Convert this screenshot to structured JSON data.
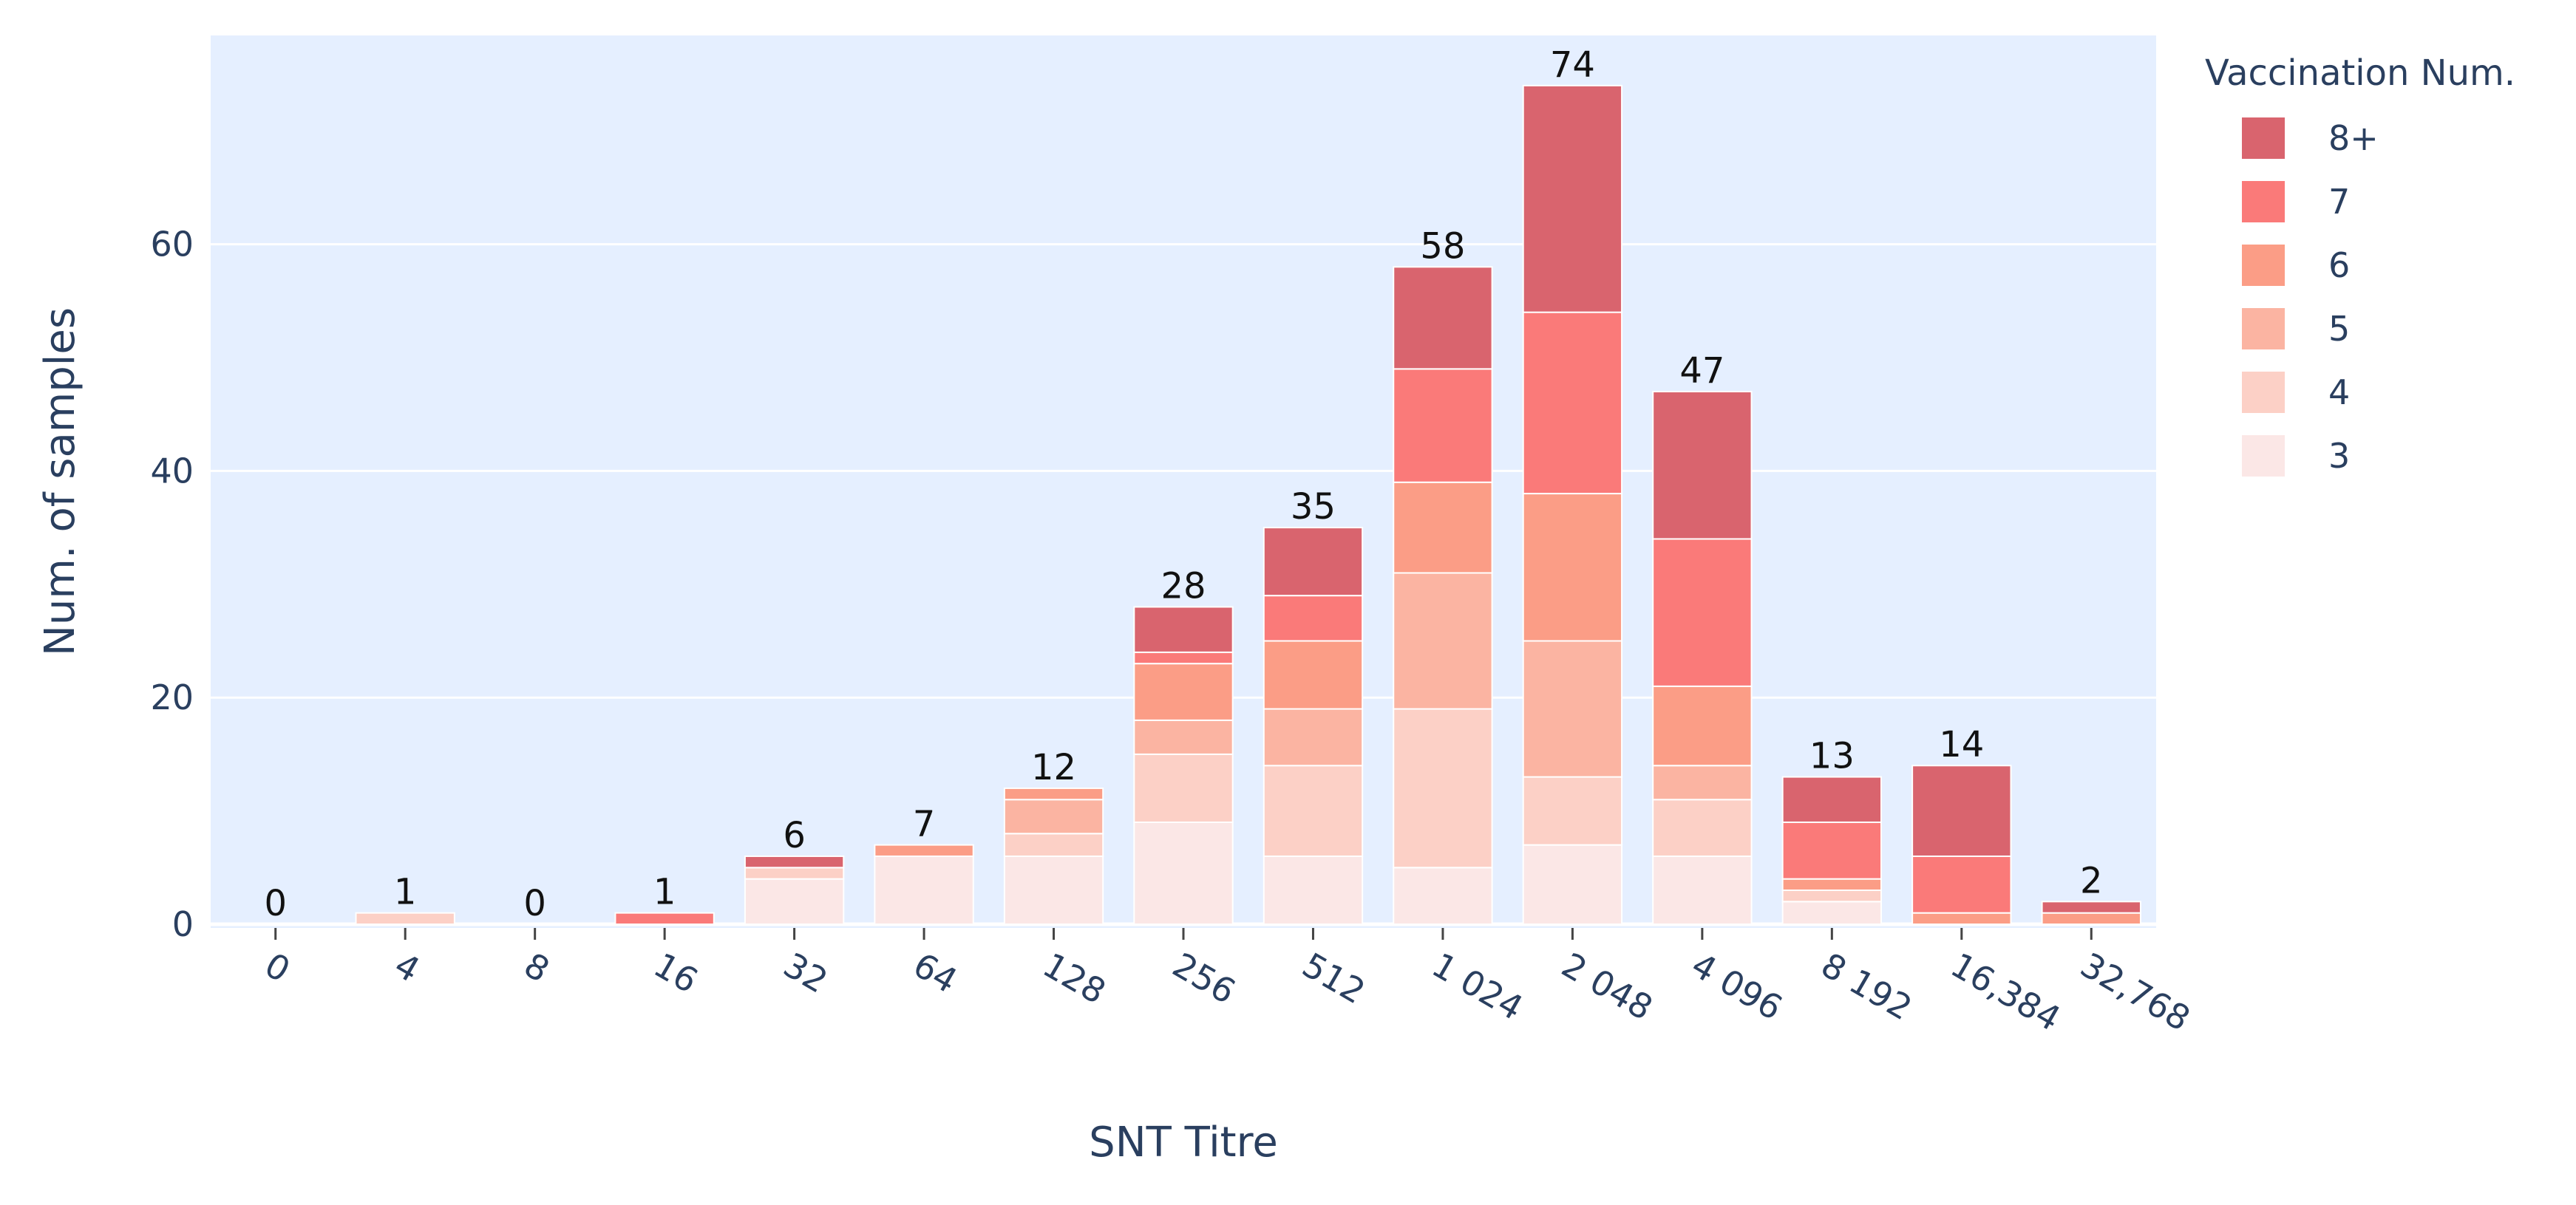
{
  "chart_data": {
    "type": "bar",
    "stacked": true,
    "xlabel": "SNT Titre",
    "ylabel": "Num. of samples",
    "categories": [
      "0",
      "4",
      "8",
      "16",
      "32",
      "64",
      "128",
      "256",
      "512",
      "1 024",
      "2 048",
      "4 096",
      "8 192",
      "16,384",
      "32,768"
    ],
    "yticks": [
      0,
      20,
      40,
      60
    ],
    "ylim": [
      0,
      79
    ],
    "grid": true,
    "legend_position": "right",
    "legend_title": "Vaccination Num.",
    "series": [
      {
        "name": "3",
        "color": "#fbe7e6",
        "values": [
          0,
          0,
          0,
          0,
          4,
          6,
          6,
          9,
          6,
          5,
          7,
          6,
          2,
          0,
          0
        ]
      },
      {
        "name": "4",
        "color": "#fcd0c6",
        "values": [
          0,
          1,
          0,
          0,
          1,
          0,
          2,
          6,
          8,
          14,
          6,
          5,
          1,
          0,
          0
        ]
      },
      {
        "name": "5",
        "color": "#fbb4a2",
        "values": [
          0,
          0,
          0,
          0,
          0,
          0,
          3,
          3,
          5,
          12,
          12,
          3,
          0,
          0,
          0
        ]
      },
      {
        "name": "6",
        "color": "#fb9d86",
        "values": [
          0,
          0,
          0,
          0,
          0,
          1,
          1,
          5,
          6,
          8,
          13,
          7,
          1,
          1,
          1
        ]
      },
      {
        "name": "7",
        "color": "#fa7a79",
        "values": [
          0,
          0,
          0,
          1,
          0,
          0,
          0,
          1,
          4,
          10,
          16,
          13,
          5,
          5,
          0
        ]
      },
      {
        "name": "8+",
        "color": "#d9646e",
        "values": [
          0,
          0,
          0,
          0,
          1,
          0,
          0,
          4,
          6,
          9,
          20,
          13,
          4,
          8,
          1
        ]
      }
    ],
    "totals": [
      0,
      1,
      0,
      1,
      6,
      7,
      12,
      28,
      35,
      58,
      74,
      47,
      13,
      14,
      2
    ]
  },
  "colors": {
    "plot_background": "#e5efff",
    "gridline": "#ffffff",
    "axis_text": "#2a3f5f"
  }
}
